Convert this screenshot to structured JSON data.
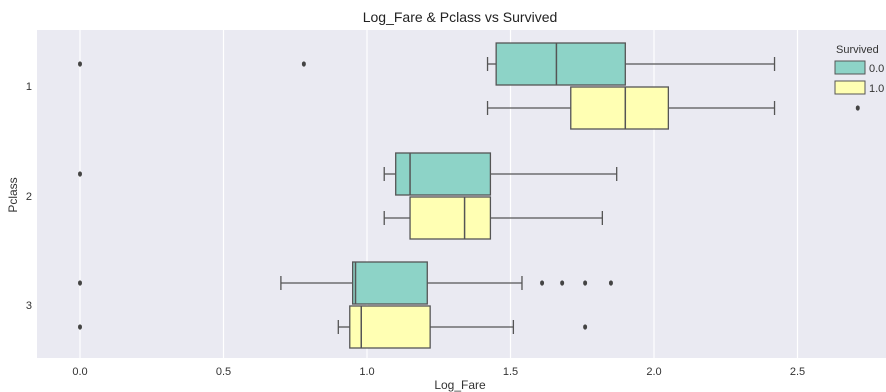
{
  "chart_data": {
    "type": "boxplot",
    "orientation": "horizontal",
    "title": "Log_Fare & Pclass vs Survived",
    "xlabel": "Log_Fare",
    "ylabel": "Pclass",
    "xlim": [
      -0.1,
      2.82
    ],
    "xticks": [
      "0.0",
      "0.5",
      "1.0",
      "1.5",
      "2.0",
      "2.5"
    ],
    "xtick_values": [
      0.0,
      0.5,
      1.0,
      1.5,
      2.0,
      2.5
    ],
    "categories": [
      "1",
      "2",
      "3"
    ],
    "grid": true,
    "legend": {
      "title": "Survived",
      "placement": "top-right"
    },
    "series": [
      {
        "name": "0.0",
        "color": "#8dd3c7",
        "boxes": [
          {
            "category": "1",
            "whisker_low": 1.42,
            "q1": 1.45,
            "median": 1.66,
            "q3": 1.9,
            "whisker_high": 2.42,
            "outliers": [
              0.0,
              0.78
            ]
          },
          {
            "category": "2",
            "whisker_low": 1.06,
            "q1": 1.1,
            "median": 1.15,
            "q3": 1.43,
            "whisker_high": 1.87,
            "outliers": [
              0.0
            ]
          },
          {
            "category": "3",
            "whisker_low": 0.7,
            "q1": 0.95,
            "median": 0.96,
            "q3": 1.21,
            "whisker_high": 1.54,
            "outliers": [
              0.0,
              1.61,
              1.68,
              1.76,
              1.85
            ]
          }
        ]
      },
      {
        "name": "1.0",
        "color": "#ffffb3",
        "boxes": [
          {
            "category": "1",
            "whisker_low": 1.42,
            "q1": 1.71,
            "median": 1.9,
            "q3": 2.05,
            "whisker_high": 2.42,
            "outliers": [
              2.71
            ]
          },
          {
            "category": "2",
            "whisker_low": 1.06,
            "q1": 1.15,
            "median": 1.34,
            "q3": 1.43,
            "whisker_high": 1.82,
            "outliers": []
          },
          {
            "category": "3",
            "whisker_low": 0.9,
            "q1": 0.94,
            "median": 0.98,
            "q3": 1.22,
            "whisker_high": 1.51,
            "outliers": [
              0.0,
              1.76
            ]
          }
        ]
      }
    ]
  }
}
